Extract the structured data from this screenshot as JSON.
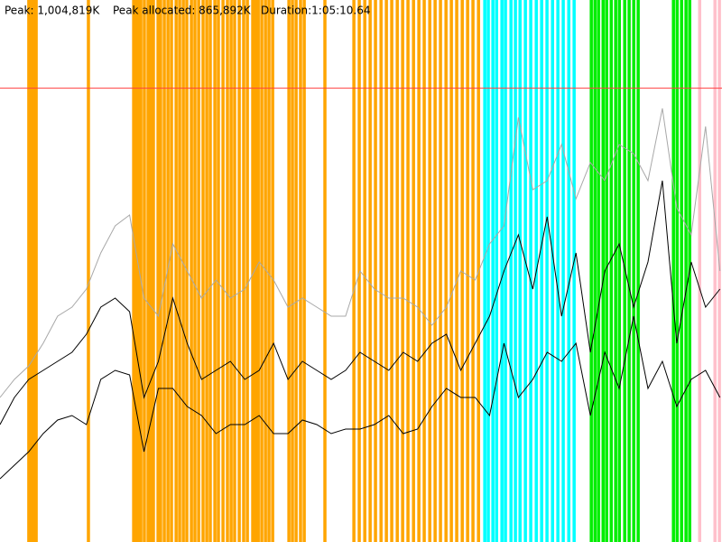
{
  "chart_data": {
    "type": "line",
    "peak_text": "Peak: 1,004,819K",
    "allocated_text": "Peak allocated: 865,892K",
    "duration_text": "Duration:1:05:10.64",
    "peak_value": 1004819,
    "peak_color": "#ff4040",
    "xlim": [
      0,
      3911
    ],
    "ylim": [
      0,
      1200000
    ],
    "x": [
      0,
      78,
      156,
      234,
      312,
      390,
      468,
      546,
      624,
      702,
      780,
      858,
      936,
      1014,
      1092,
      1170,
      1248,
      1326,
      1404,
      1482,
      1560,
      1638,
      1716,
      1794,
      1872,
      1950,
      2028,
      2106,
      2184,
      2262,
      2340,
      2418,
      2496,
      2574,
      2652,
      2730,
      2808,
      2886,
      2964,
      3042,
      3120,
      3198,
      3276,
      3354,
      3432,
      3510,
      3588,
      3666,
      3744,
      3822,
      3900
    ],
    "series": [
      {
        "color": "#a8a8a8",
        "values": [
          320000,
          360000,
          390000,
          440000,
          500000,
          520000,
          560000,
          640000,
          700000,
          724000,
          540000,
          500000,
          660000,
          600000,
          540000,
          580000,
          540000,
          560000,
          620000,
          580000,
          520000,
          540000,
          520000,
          500000,
          500000,
          600000,
          560000,
          540000,
          540000,
          520000,
          480000,
          520000,
          600000,
          580000,
          660000,
          700000,
          940000,
          780000,
          800000,
          880000,
          760000,
          840000,
          800000,
          880000,
          860000,
          800000,
          960000,
          740000,
          680000,
          920000,
          600000
        ]
      },
      {
        "color": "#000000",
        "values": [
          260000,
          320000,
          360000,
          380000,
          400000,
          420000,
          460000,
          520000,
          540000,
          510000,
          320000,
          400000,
          540000,
          440000,
          360000,
          380000,
          400000,
          360000,
          380000,
          440000,
          360000,
          400000,
          380000,
          360000,
          380000,
          420000,
          400000,
          380000,
          420000,
          400000,
          440000,
          460000,
          380000,
          440000,
          500000,
          600000,
          680000,
          560000,
          720000,
          500000,
          640000,
          420000,
          600000,
          660000,
          520000,
          620000,
          800000,
          440000,
          620000,
          520000,
          560000
        ]
      },
      {
        "color": "#000000",
        "values": [
          140000,
          170000,
          200000,
          240000,
          270000,
          280000,
          260000,
          360000,
          380000,
          370000,
          200000,
          340000,
          340000,
          300000,
          280000,
          240000,
          260000,
          260000,
          280000,
          240000,
          240000,
          270000,
          260000,
          240000,
          250000,
          250000,
          260000,
          280000,
          240000,
          250000,
          300000,
          340000,
          320000,
          320000,
          280000,
          440000,
          320000,
          360000,
          420000,
          400000,
          440000,
          280000,
          420000,
          340000,
          500000,
          340000,
          400000,
          300000,
          360000,
          380000,
          320000
        ]
      }
    ],
    "markers": [
      {
        "color": "#ffa500",
        "x": [
          156,
          166,
          176,
          186,
          196,
          479,
          724,
          734,
          748,
          763,
          782,
          802,
          817,
          831,
          856,
          870,
          890,
          910,
          929,
          954,
          973,
          993,
          1012,
          1037,
          1056,
          1076,
          1100,
          1120,
          1139,
          1164,
          1183,
          1208,
          1232,
          1252,
          1271,
          1296,
          1320,
          1340,
          1369,
          1384,
          1399,
          1418,
          1438,
          1457,
          1477,
          1565,
          1584,
          1604,
          1628,
          1648,
          1760,
          1917,
          1946,
          1976,
          2005,
          2034,
          2064,
          2093,
          2122,
          2152,
          2181,
          2210,
          2240,
          2269,
          2298,
          2328,
          2357,
          2386,
          2416,
          2445,
          2474,
          2504,
          2533,
          2562,
          2592
        ]
      },
      {
        "color": "#00ffff",
        "x": [
          2626,
          2645,
          2670,
          2690,
          2719,
          2738,
          2768,
          2792,
          2817,
          2846,
          2875,
          2905,
          2934,
          2963,
          2993,
          3022,
          3051,
          3081,
          3110
        ]
      },
      {
        "color": "#00ee00",
        "x": [
          3203,
          3223,
          3242,
          3267,
          3286,
          3311,
          3335,
          3355,
          3384,
          3408,
          3433,
          3457,
          3648,
          3668,
          3692,
          3716,
          3736
        ]
      },
      {
        "color": "#ffc0cb",
        "x": [
          3790,
          3873,
          3897
        ]
      }
    ]
  }
}
